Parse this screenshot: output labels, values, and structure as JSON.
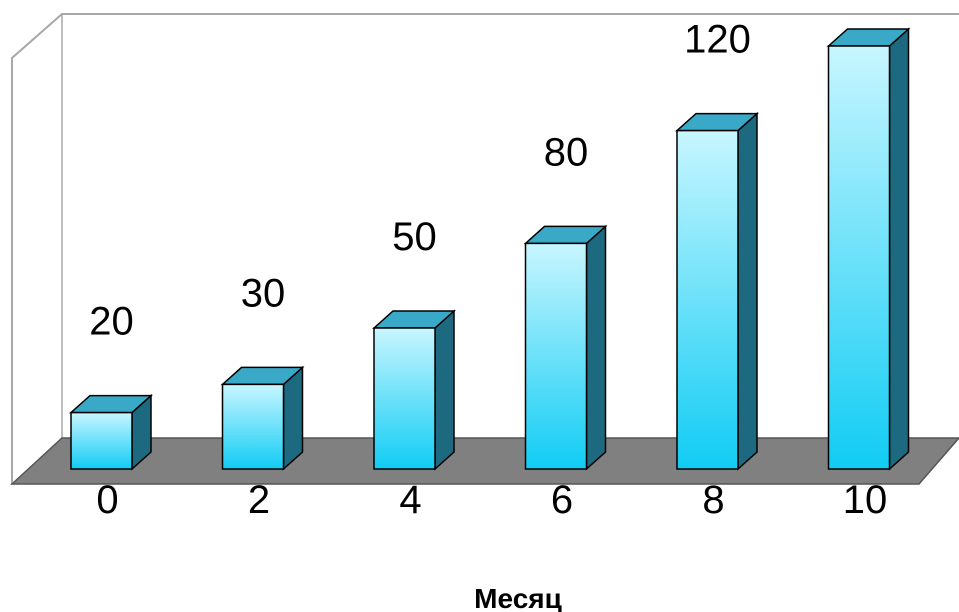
{
  "chart_data": {
    "type": "bar",
    "categories": [
      "0",
      "2",
      "4",
      "6",
      "8",
      "10"
    ],
    "values": [
      20,
      30,
      50,
      80,
      120,
      150
    ],
    "data_labels": [
      "20",
      "30",
      "50",
      "80",
      "120",
      ""
    ],
    "title": "",
    "xlabel": "Месяц",
    "ylabel": "",
    "ylim": [
      0,
      150
    ],
    "grid": false,
    "legend": "none",
    "style": "3d-column",
    "colors": {
      "bar_top_light": "#c8f6ff",
      "bar_bottom": "#11ccf4",
      "bar_side": "#1d6a80",
      "bar_cap": "#3aa9c8",
      "floor": "#808080",
      "frame": "#a8a8a8"
    }
  }
}
